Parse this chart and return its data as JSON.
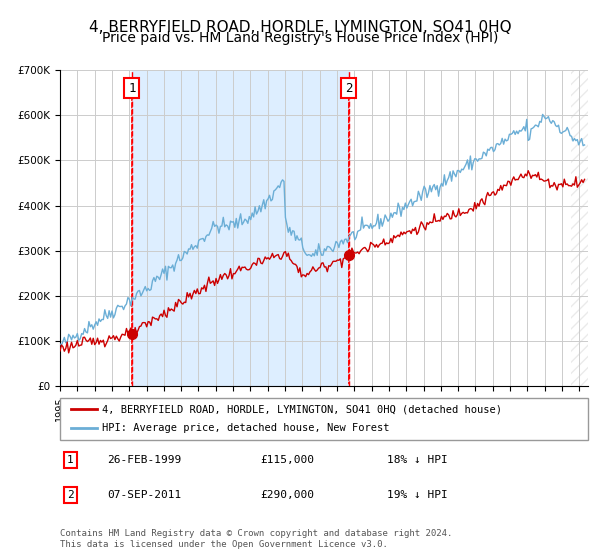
{
  "title": "4, BERRYFIELD ROAD, HORDLE, LYMINGTON, SO41 0HQ",
  "subtitle": "Price paid vs. HM Land Registry's House Price Index (HPI)",
  "legend_line1": "4, BERRYFIELD ROAD, HORDLE, LYMINGTON, SO41 0HQ (detached house)",
  "legend_line2": "HPI: Average price, detached house, New Forest",
  "annotation1_label": "1",
  "annotation1_date": "26-FEB-1999",
  "annotation1_price": "£115,000",
  "annotation1_hpi": "18% ↓ HPI",
  "annotation2_label": "2",
  "annotation2_date": "07-SEP-2011",
  "annotation2_price": "£290,000",
  "annotation2_hpi": "19% ↓ HPI",
  "footer": "Contains HM Land Registry data © Crown copyright and database right 2024.\nThis data is licensed under the Open Government Licence v3.0.",
  "sale1_year": 1999.15,
  "sale1_value": 115000,
  "sale2_year": 2011.68,
  "sale2_value": 290000,
  "hpi_color": "#6baed6",
  "property_color": "#cc0000",
  "background_fill": "#ddeeff",
  "hatch_color": "#bbbbbb",
  "title_fontsize": 11,
  "subtitle_fontsize": 10,
  "ylim": [
    0,
    700000
  ],
  "xlim_start": 1995.0,
  "xlim_end": 2025.5
}
